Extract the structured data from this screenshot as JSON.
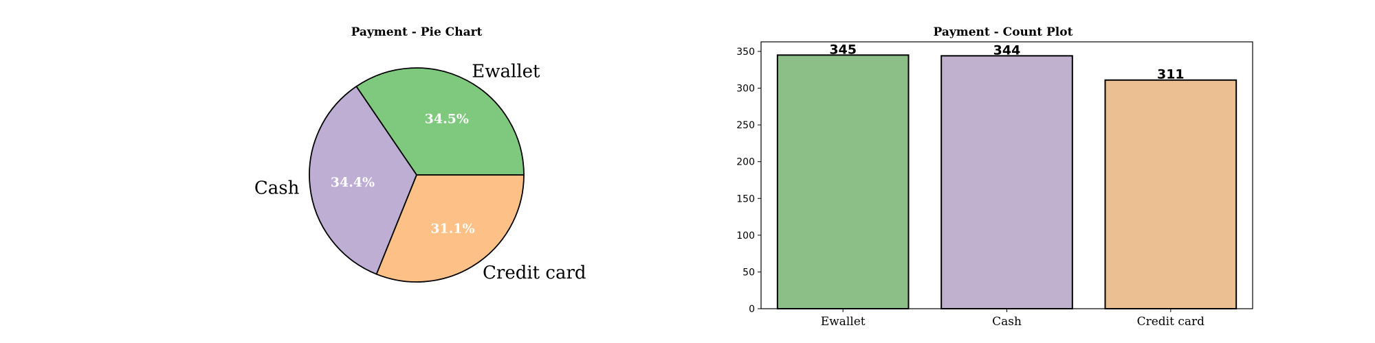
{
  "chart_data": [
    {
      "type": "pie",
      "title": "Payment - Pie Chart",
      "labels": [
        "Ewallet",
        "Cash",
        "Credit card"
      ],
      "values": [
        345,
        344,
        311
      ],
      "percent_labels": [
        "34.5%",
        "34.4%",
        "31.1%"
      ],
      "colors": [
        "#7fc97f",
        "#beaed4",
        "#fdc086"
      ]
    },
    {
      "type": "bar",
      "title": "Payment - Count Plot",
      "categories": [
        "Ewallet",
        "Cash",
        "Credit card"
      ],
      "values": [
        345,
        344,
        311
      ],
      "value_labels": [
        "345",
        "344",
        "311"
      ],
      "colors": [
        "#8bbf87",
        "#c0b1cf",
        "#ecbf93"
      ],
      "ylim": [
        0,
        363
      ],
      "yticks": [
        0,
        50,
        100,
        150,
        200,
        250,
        300,
        350
      ],
      "ytick_labels": [
        "0",
        "50",
        "100",
        "150",
        "200",
        "250",
        "300",
        "350"
      ],
      "xlabel": "",
      "ylabel": ""
    }
  ]
}
